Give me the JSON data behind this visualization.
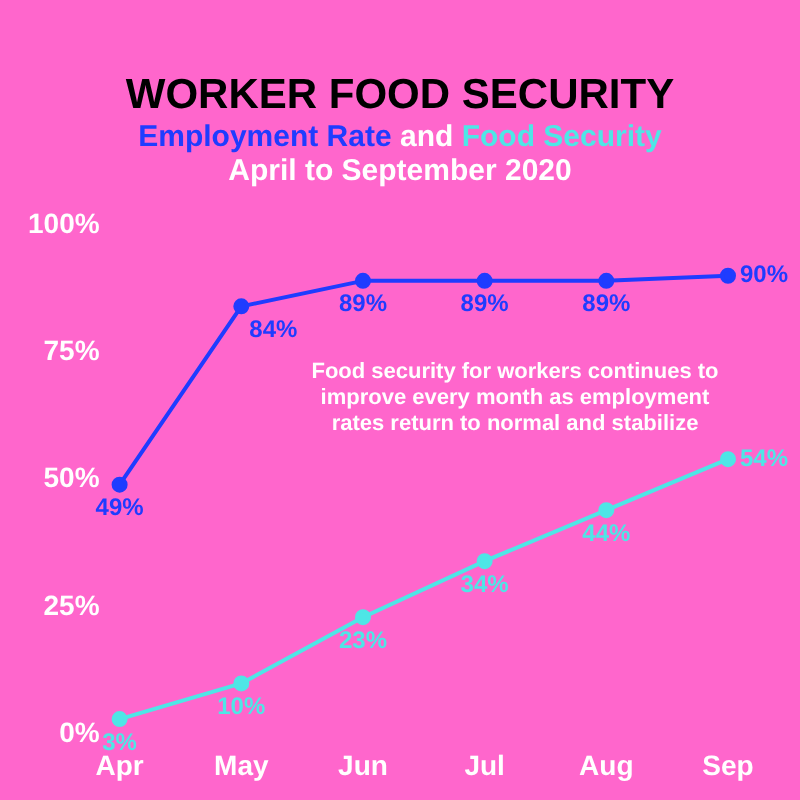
{
  "chart_data": {
    "type": "line",
    "title": "WORKER FOOD SECURITY",
    "subtitle": "and",
    "annotations": [
      "April to September 2020",
      "Food security for workers continues to improve every month as employment rates return to normal and stabilize"
    ],
    "categories": [
      "Apr",
      "May",
      "Jun",
      "Jul",
      "Aug",
      "Sep"
    ],
    "series": [
      {
        "name": "Employment Rate",
        "color": "#1f3cff",
        "values": [
          49,
          84,
          89,
          89,
          89,
          90
        ],
        "value_labels": [
          "49%",
          "84%",
          "89%",
          "89%",
          "89%",
          "90%"
        ]
      },
      {
        "name": "Food Security",
        "color": "#4ee6e6",
        "values": [
          3,
          10,
          23,
          34,
          44,
          54
        ],
        "value_labels": [
          "3%",
          "10%",
          "23%",
          "34%",
          "44%",
          "54%"
        ]
      }
    ],
    "ylim": [
      0,
      100
    ],
    "yticks": [
      {
        "value": 0,
        "label": "0%"
      },
      {
        "value": 25,
        "label": "25%"
      },
      {
        "value": 50,
        "label": "50%"
      },
      {
        "value": 75,
        "label": "75%"
      },
      {
        "value": 100,
        "label": "100%"
      }
    ],
    "grid": false,
    "legend": false,
    "marker": "circle",
    "line_style": "solid"
  }
}
